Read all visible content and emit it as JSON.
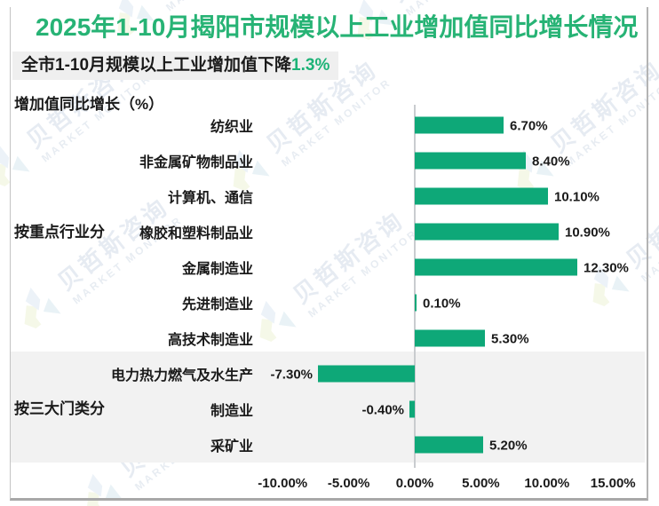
{
  "title": "2025年1-10月揭阳市规模以上工业增加值同比增长情况",
  "subtitle": {
    "prefix": "全市1-10月规模以上工业增加值下降",
    "highlight": "1.3%"
  },
  "axis_title": "增加值同比增长（%）",
  "groups": [
    {
      "label": "按重点行业分",
      "rows": [
        0,
        6
      ]
    },
    {
      "label": "按三大门类分",
      "rows": [
        7,
        9
      ]
    }
  ],
  "chart_data": {
    "type": "bar",
    "orientation": "horizontal",
    "title": "2025年1-10月揭阳市规模以上工业增加值同比增长情况",
    "xlabel": "",
    "ylabel": "增加值同比增长（%）",
    "categories": [
      "纺织业",
      "非金属矿物制品业",
      "计算机、通信",
      "橡胶和塑料制品业",
      "金属制造业",
      "先进制造业",
      "高技术制造业",
      "电力热力燃气及水生产",
      "制造业",
      "采矿业"
    ],
    "values": [
      6.7,
      8.4,
      10.1,
      10.9,
      12.3,
      0.1,
      5.3,
      -7.3,
      -0.4,
      5.2
    ],
    "value_labels": [
      "6.70%",
      "8.40%",
      "10.10%",
      "10.90%",
      "12.30%",
      "0.10%",
      "5.30%",
      "-7.30%",
      "-0.40%",
      "5.20%"
    ],
    "x_ticks": [
      "-10.00%",
      "-5.00%",
      "0.00%",
      "5.00%",
      "10.00%",
      "15.00%"
    ],
    "x_tick_values": [
      -10,
      -5,
      0,
      5,
      10,
      15
    ],
    "xlim": [
      -11.5,
      15.5
    ],
    "grid": false,
    "legend": false,
    "bar_color": "#0ea878"
  },
  "watermark": {
    "cn": "贝哲斯咨询",
    "en": "MARKET MONITOR"
  },
  "colors": {
    "title_green": "#27b375",
    "highlight_green": "#1db377",
    "bar_green": "#0ea878",
    "band_gray": "#f2f2f2",
    "subtitle_bg": "#efefef"
  }
}
